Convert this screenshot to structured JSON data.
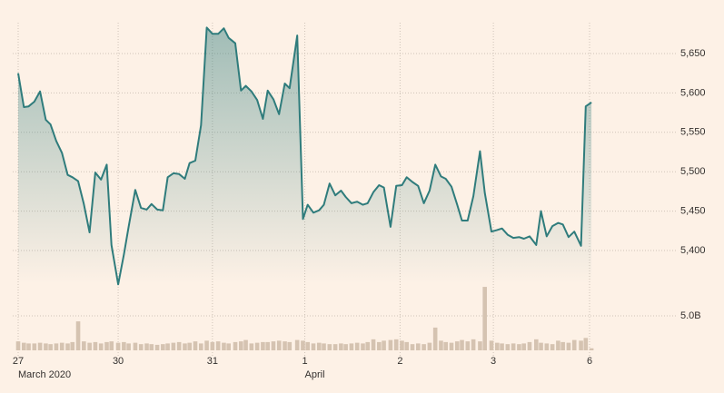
{
  "chart_data": {
    "type": "price-volume",
    "x": [
      0,
      0.06,
      0.11,
      0.17,
      0.23,
      0.29,
      0.34,
      0.4,
      0.46,
      0.52,
      0.57,
      0.63,
      0.69,
      0.75,
      0.81,
      0.87,
      0.93,
      0.98,
      1.05,
      1.11,
      1.16,
      1.23,
      1.29,
      1.35,
      1.4,
      1.46,
      1.52,
      1.57,
      1.63,
      1.69,
      1.75,
      1.8,
      1.86,
      1.92,
      1.98,
      2.04,
      2.1,
      2.16,
      2.21,
      2.28,
      2.34,
      2.39,
      2.45,
      2.51,
      2.57,
      2.62,
      2.68,
      2.74,
      2.8,
      2.85,
      2.93,
      2.99,
      3.04,
      3.1,
      3.16,
      3.21,
      3.27,
      3.33,
      3.39,
      3.44,
      3.5,
      3.56,
      3.62,
      3.67,
      3.73,
      3.79,
      3.84,
      3.91,
      3.97,
      4.03,
      4.08,
      4.14,
      4.2,
      4.26,
      4.32,
      4.38,
      4.44,
      4.49,
      4.55,
      4.61,
      4.66,
      4.72,
      4.78,
      4.85,
      4.9,
      4.97,
      5.03,
      5.08,
      5.14,
      5.2,
      5.26,
      5.31,
      5.37,
      5.44,
      5.49,
      5.55,
      5.61,
      5.67,
      5.72,
      5.78,
      5.84,
      5.91,
      5.96,
      6.02
    ],
    "series": [
      {
        "type": "area",
        "color": "#2f7c7c",
        "values": [
          5625,
          5582,
          5583,
          5589,
          5602,
          5566,
          5560,
          5539,
          5524,
          5496,
          5493,
          5488,
          5459,
          5423,
          5499,
          5490,
          5509,
          5407,
          5357,
          5395,
          5430,
          5477,
          5454,
          5452,
          5459,
          5452,
          5451,
          5493,
          5498,
          5497,
          5491,
          5511,
          5514,
          5559,
          5683,
          5675,
          5675,
          5682,
          5670,
          5663,
          5603,
          5609,
          5602,
          5591,
          5567,
          5603,
          5592,
          5573,
          5612,
          5606,
          5673,
          5440,
          5458,
          5448,
          5451,
          5458,
          5485,
          5470,
          5476,
          5468,
          5460,
          5462,
          5458,
          5460,
          5474,
          5483,
          5480,
          5430,
          5482,
          5483,
          5493,
          5487,
          5482,
          5460,
          5476,
          5509,
          5494,
          5491,
          5481,
          5458,
          5438,
          5438,
          5469,
          5526,
          5473,
          5424,
          5426,
          5428,
          5420,
          5416,
          5417,
          5415,
          5418,
          5407,
          5450,
          5418,
          5431,
          5435,
          5433,
          5417,
          5424,
          5406,
          5583,
          5588
        ]
      },
      {
        "type": "bar",
        "axis": "y2",
        "color": "#d5c3b1",
        "values": [
          1.3,
          1.1,
          1.0,
          1.0,
          1.1,
          1.0,
          0.9,
          1.0,
          1.1,
          1.0,
          1.2,
          4.2,
          1.3,
          1.1,
          1.2,
          1.0,
          1.2,
          1.3,
          1.1,
          1.2,
          1.0,
          1.1,
          0.9,
          1.0,
          0.9,
          0.8,
          0.9,
          1.0,
          1.1,
          1.2,
          1.0,
          1.1,
          1.3,
          1.0,
          1.4,
          1.2,
          1.3,
          1.1,
          1.0,
          1.2,
          1.3,
          1.5,
          1.0,
          1.1,
          1.2,
          1.2,
          1.3,
          1.4,
          1.3,
          1.2,
          1.5,
          1.4,
          1.2,
          1.0,
          1.1,
          1.0,
          0.9,
          0.9,
          1.0,
          0.9,
          1.0,
          1.1,
          1.0,
          1.2,
          1.6,
          1.2,
          1.4,
          1.5,
          1.6,
          1.4,
          1.2,
          0.9,
          1.0,
          0.9,
          1.1,
          3.3,
          1.4,
          1.2,
          1.1,
          1.3,
          1.5,
          1.3,
          1.6,
          1.3,
          9.2,
          1.4,
          1.1,
          1.0,
          0.9,
          1.0,
          0.9,
          1.0,
          1.2,
          1.6,
          1.1,
          1.0,
          0.9,
          1.4,
          1.2,
          1.1,
          1.5,
          1.4,
          1.8,
          0.3
        ]
      }
    ],
    "xlim": [
      0,
      6
    ],
    "xticks": [
      {
        "value": 0,
        "label": "27",
        "sublabel": "March 2020"
      },
      {
        "value": 1.05,
        "label": "30"
      },
      {
        "value": 2.04,
        "label": "31"
      },
      {
        "value": 3.01,
        "label": "1",
        "sublabel": "April"
      },
      {
        "value": 4.01,
        "label": "2"
      },
      {
        "value": 4.99,
        "label": "3"
      },
      {
        "value": 6,
        "label": "6"
      }
    ],
    "ylim": [
      5360,
      5690
    ],
    "yticks": [
      {
        "value": 5400,
        "label": "5,400"
      },
      {
        "value": 5450,
        "label": "5,450"
      },
      {
        "value": 5500,
        "label": "5,500"
      },
      {
        "value": 5550,
        "label": "5,550"
      },
      {
        "value": 5600,
        "label": "5,600"
      },
      {
        "value": 5650,
        "label": "5,650"
      }
    ],
    "y2lim": [
      0,
      10
    ],
    "y2ticks": [
      {
        "value": 5,
        "label": "5.0B"
      }
    ],
    "grid": true
  }
}
